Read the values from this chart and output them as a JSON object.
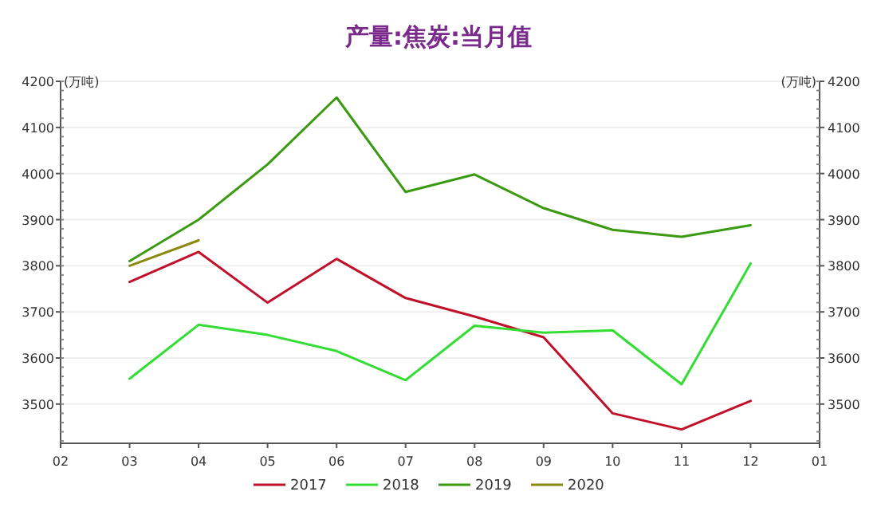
{
  "chart_data": {
    "type": "line",
    "title": "产量:焦炭:当月值",
    "ylabel": "(万吨)",
    "y2label": "(万吨)",
    "categories": [
      "02",
      "03",
      "04",
      "05",
      "06",
      "07",
      "08",
      "09",
      "10",
      "11",
      "12",
      "01"
    ],
    "series": [
      {
        "name": "2017",
        "color": "#c0102a",
        "values": [
          null,
          3765,
          3830,
          3720,
          3815,
          3730,
          3690,
          3645,
          3480,
          3445,
          3507,
          null
        ]
      },
      {
        "name": "2018",
        "color": "#33dd33",
        "values": [
          null,
          3555,
          3672,
          3650,
          3615,
          3552,
          3670,
          3655,
          3660,
          3543,
          3805,
          null
        ]
      },
      {
        "name": "2019",
        "color": "#3a9a10",
        "values": [
          null,
          3810,
          3900,
          4020,
          4165,
          3960,
          3998,
          3925,
          3878,
          3863,
          3888,
          null
        ]
      },
      {
        "name": "2020",
        "color": "#8a8a10",
        "values": [
          null,
          3800,
          3855,
          null,
          null,
          null,
          null,
          null,
          null,
          null,
          null,
          null
        ]
      }
    ],
    "ylim": [
      3415,
      4200
    ],
    "yticks": [
      3500,
      3600,
      3700,
      3800,
      3900,
      4000,
      4100,
      4200
    ],
    "y2lim": [
      3415,
      4200
    ],
    "y2ticks": [
      3500,
      3600,
      3700,
      3800,
      3900,
      4000,
      4100,
      4200
    ],
    "grid": "y",
    "legend": "bottom",
    "marker": "none",
    "line_style": "solid"
  }
}
